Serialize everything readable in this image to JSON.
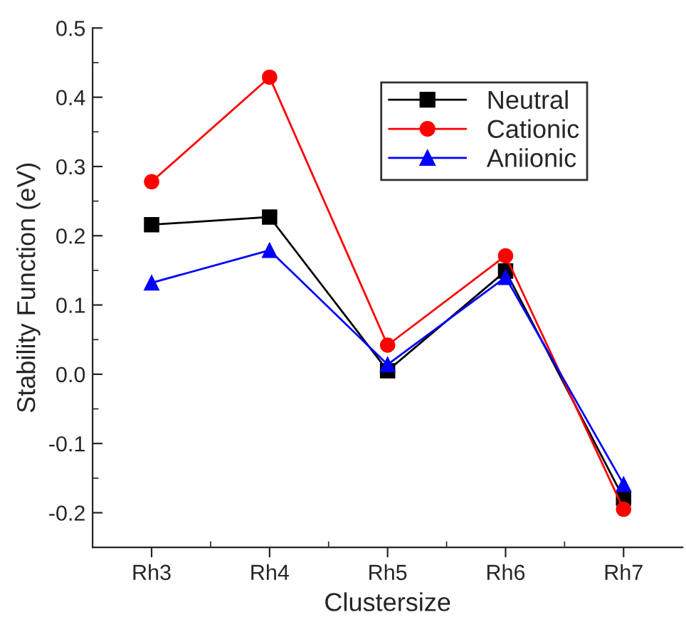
{
  "chart_data": {
    "type": "line",
    "xlabel": "Clustersize",
    "ylabel": "Stability Function (eV)",
    "categories": [
      "Rh3",
      "Rh4",
      "Rh5",
      "Rh6",
      "Rh7"
    ],
    "series": [
      {
        "name": "Neutral",
        "color": "#000000",
        "marker": "square",
        "values": [
          0.216,
          0.227,
          0.005,
          0.149,
          -0.179
        ]
      },
      {
        "name": "Cationic",
        "color": "#ff0000",
        "marker": "circle",
        "values": [
          0.278,
          0.429,
          0.042,
          0.171,
          -0.195
        ]
      },
      {
        "name": "Aniionic",
        "color": "#0000ff",
        "marker": "triangle",
        "values": [
          0.132,
          0.179,
          0.014,
          0.14,
          -0.159
        ]
      }
    ],
    "ylim": [
      -0.25,
      0.5
    ],
    "yticks": [
      {
        "value": -0.2,
        "label": "-0.2"
      },
      {
        "value": -0.1,
        "label": "-0.1"
      },
      {
        "value": 0.0,
        "label": "0.0"
      },
      {
        "value": 0.1,
        "label": "0.1"
      },
      {
        "value": 0.2,
        "label": "0.2"
      },
      {
        "value": 0.3,
        "label": "0.3"
      },
      {
        "value": 0.4,
        "label": "0.4"
      },
      {
        "value": 0.5,
        "label": "0.5"
      }
    ],
    "grid": false,
    "legend": "top right",
    "line_style": "solid"
  }
}
